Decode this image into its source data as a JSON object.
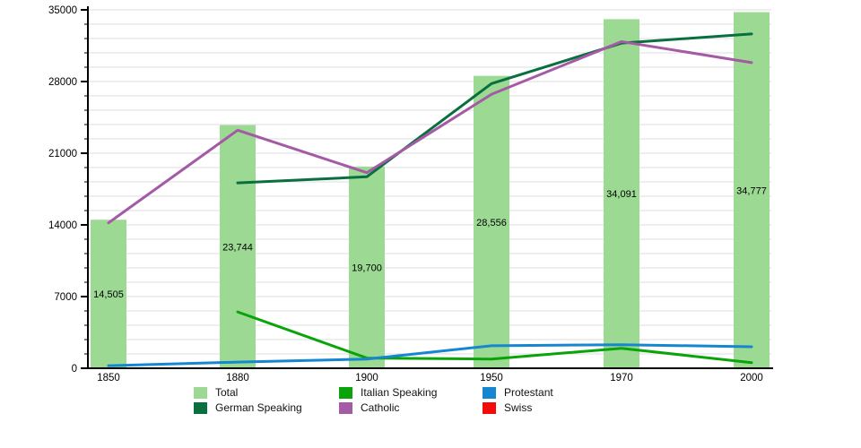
{
  "chart_data": {
    "type": "bar+line",
    "title": "",
    "xlabel": "",
    "ylabel": "",
    "categories": [
      "1850",
      "1880",
      "1900",
      "1950",
      "1970",
      "2000"
    ],
    "bar_series": {
      "name": "Total",
      "color": "#9cda94",
      "values": [
        14505,
        23744,
        19700,
        28556,
        34091,
        34777
      ],
      "value_labels": [
        "14,505",
        "23,744",
        "19,700",
        "28,556",
        "34,091",
        "34,777"
      ]
    },
    "line_series": [
      {
        "name": "Italian Speaking",
        "color": "#0aa40a",
        "values": [
          null,
          5500,
          1000,
          900,
          1950,
          550
        ]
      },
      {
        "name": "Protestant",
        "color": "#1686d1",
        "values": [
          250,
          600,
          900,
          2200,
          2300,
          2100
        ]
      },
      {
        "name": "German Speaking",
        "color": "#0a6f3e",
        "values": [
          null,
          18100,
          18700,
          27800,
          31750,
          32650
        ]
      },
      {
        "name": "Catholic",
        "color": "#a55aa5",
        "values": [
          14200,
          23250,
          19100,
          26750,
          31900,
          29850
        ]
      },
      {
        "name": "Swiss",
        "color": "#f30b0b",
        "values": [
          null,
          null,
          null,
          null,
          null,
          null
        ]
      }
    ],
    "ylim": [
      0,
      35000
    ],
    "yticks": [
      0,
      7000,
      14000,
      21000,
      28000,
      35000
    ],
    "ytick_labels": [
      "0",
      "7000",
      "14000",
      "21000",
      "28000",
      "35000"
    ],
    "minor_step": 1400,
    "grid": "horizontal light-gray gridlines every 1400 units",
    "legend_position": "bottom",
    "legend": [
      {
        "label": "Total",
        "color": "#9cda94"
      },
      {
        "label": "German Speaking",
        "color": "#0a6f3e"
      },
      {
        "label": "Italian Speaking",
        "color": "#0aa40a"
      },
      {
        "label": "Catholic",
        "color": "#a55aa5"
      },
      {
        "label": "Protestant",
        "color": "#1686d1"
      },
      {
        "label": "Swiss",
        "color": "#f30b0b"
      }
    ]
  },
  "colors": {
    "axis": "#000000",
    "gridline": "#dcdcdc",
    "bar_label_text": "#111111",
    "tick_label_text": "#000000"
  }
}
